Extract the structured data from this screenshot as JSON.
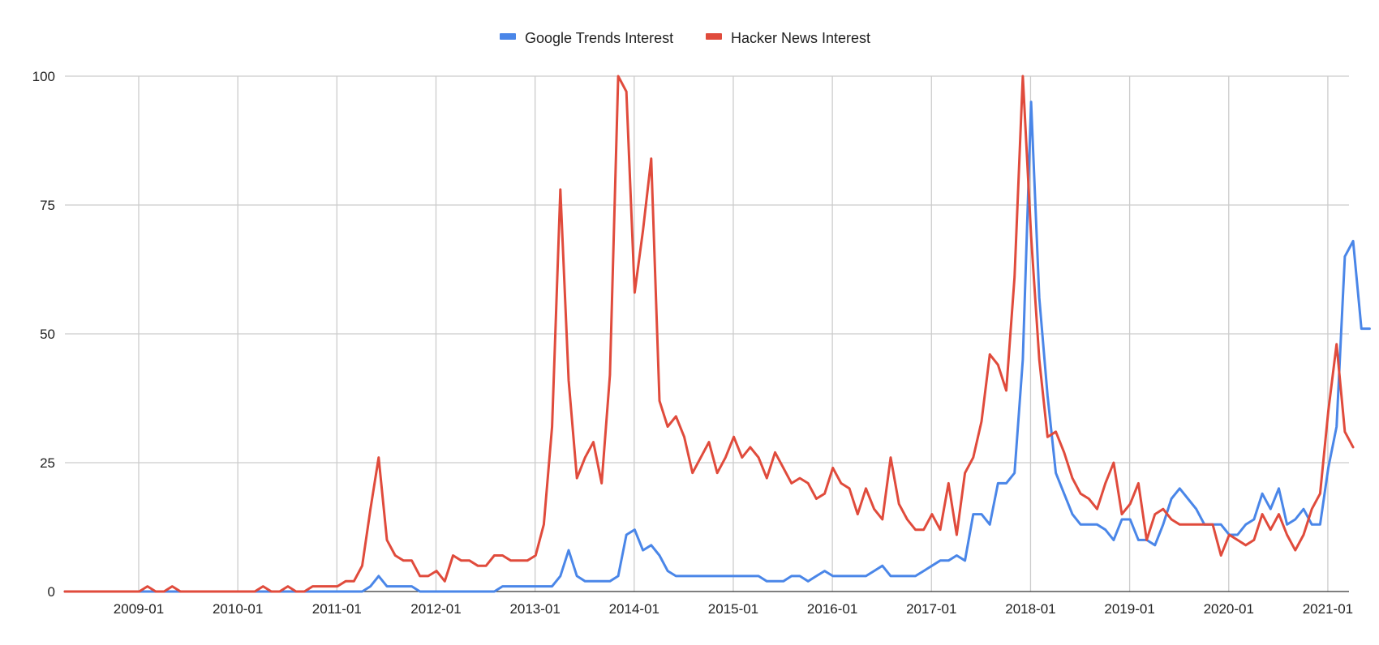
{
  "chart_data": {
    "type": "line",
    "title": "",
    "xlabel": "",
    "ylabel": "",
    "ylim": [
      0,
      100
    ],
    "y_ticks": [
      "0",
      "25",
      "50",
      "75",
      "100"
    ],
    "x_ticks": [
      "2009-01",
      "2010-01",
      "2011-01",
      "2012-01",
      "2013-01",
      "2014-01",
      "2015-01",
      "2016-01",
      "2017-01",
      "2018-01",
      "2019-01",
      "2020-01",
      "2021-01"
    ],
    "x_start": "2008-02",
    "grid": true,
    "legend_position": "top-center",
    "series": [
      {
        "name": "Google Trends Interest",
        "color": "#4a86e8",
        "values": [
          0,
          0,
          0,
          0,
          0,
          0,
          0,
          0,
          0,
          0,
          0,
          0,
          0,
          0,
          0,
          0,
          0,
          0,
          0,
          0,
          0,
          0,
          0,
          0,
          0,
          0,
          0,
          0,
          0,
          0,
          0,
          0,
          0,
          0,
          0,
          0,
          0,
          1,
          3,
          1,
          1,
          1,
          1,
          0,
          0,
          0,
          0,
          0,
          0,
          0,
          0,
          0,
          0,
          1,
          1,
          1,
          1,
          1,
          1,
          1,
          3,
          8,
          3,
          2,
          2,
          2,
          2,
          3,
          11,
          12,
          8,
          9,
          7,
          4,
          3,
          3,
          3,
          3,
          3,
          3,
          3,
          3,
          3,
          3,
          3,
          2,
          2,
          2,
          3,
          3,
          2,
          3,
          4,
          3,
          3,
          3,
          3,
          3,
          4,
          5,
          3,
          3,
          3,
          3,
          4,
          5,
          6,
          6,
          7,
          6,
          15,
          15,
          13,
          21,
          21,
          23,
          45,
          95,
          57,
          38,
          23,
          19,
          15,
          13,
          13,
          13,
          12,
          10,
          14,
          14,
          10,
          10,
          9,
          13,
          18,
          20,
          18,
          16,
          13,
          13,
          13,
          11,
          11,
          13,
          14,
          19,
          16,
          20,
          13,
          14,
          16,
          13,
          13,
          24,
          32,
          65,
          68,
          51,
          51
        ]
      },
      {
        "name": "Hacker News Interest",
        "color": "#e04b3c",
        "values": [
          0,
          0,
          0,
          0,
          0,
          0,
          0,
          0,
          0,
          0,
          1,
          0,
          0,
          1,
          0,
          0,
          0,
          0,
          0,
          0,
          0,
          0,
          0,
          0,
          1,
          0,
          0,
          1,
          0,
          0,
          1,
          1,
          1,
          1,
          2,
          2,
          5,
          16,
          26,
          10,
          7,
          6,
          6,
          3,
          3,
          4,
          2,
          7,
          6,
          6,
          5,
          5,
          7,
          7,
          6,
          6,
          6,
          7,
          13,
          32,
          78,
          41,
          22,
          26,
          29,
          21,
          42,
          100,
          97,
          58,
          70,
          84,
          37,
          32,
          34,
          30,
          23,
          26,
          29,
          23,
          26,
          30,
          26,
          28,
          26,
          22,
          27,
          24,
          21,
          22,
          21,
          18,
          19,
          24,
          21,
          20,
          15,
          20,
          16,
          14,
          26,
          17,
          14,
          12,
          12,
          15,
          12,
          21,
          11,
          23,
          26,
          33,
          46,
          44,
          39,
          61,
          100,
          69,
          45,
          30,
          31,
          27,
          22,
          19,
          18,
          16,
          21,
          25,
          15,
          17,
          21,
          10,
          15,
          16,
          14,
          13,
          13,
          13,
          13,
          13,
          7,
          11,
          10,
          9,
          10,
          15,
          12,
          15,
          11,
          8,
          11,
          16,
          19,
          35,
          48,
          31,
          28
        ]
      }
    ]
  }
}
